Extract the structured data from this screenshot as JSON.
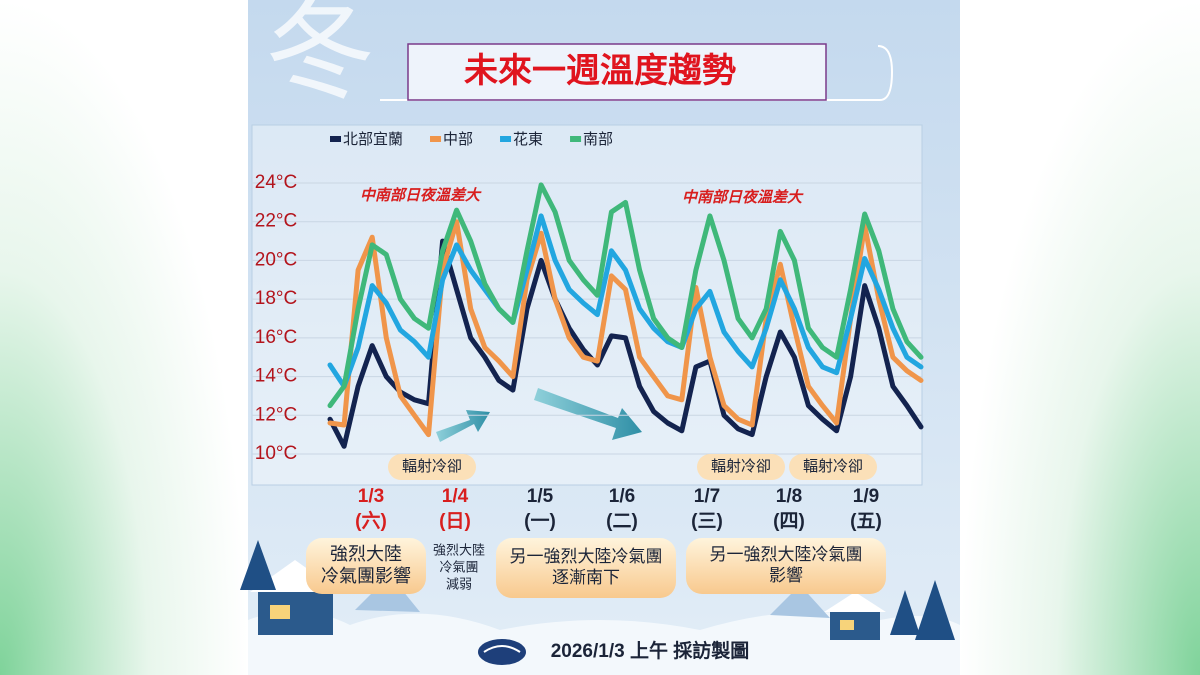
{
  "chart_data": {
    "type": "line",
    "title": "未來一週溫度趨勢",
    "watermark": "冬",
    "x": [
      0,
      4,
      8,
      12,
      16,
      20,
      24,
      28,
      32,
      36,
      40,
      44,
      48,
      52,
      56,
      60,
      64,
      68,
      72,
      76,
      80,
      84,
      88,
      92,
      96,
      100,
      104,
      108,
      112,
      116,
      120,
      124,
      128,
      132,
      136,
      140,
      144,
      148,
      152,
      156,
      160,
      164,
      168
    ],
    "xlim": [
      0,
      168
    ],
    "ylim": [
      10,
      24
    ],
    "yticks": [
      {
        "value": 10,
        "label": "10°C"
      },
      {
        "value": 12,
        "label": "12°C"
      },
      {
        "value": 14,
        "label": "14°C"
      },
      {
        "value": 16,
        "label": "16°C"
      },
      {
        "value": 18,
        "label": "18°C"
      },
      {
        "value": 20,
        "label": "20°C"
      },
      {
        "value": 22,
        "label": "22°C"
      },
      {
        "value": 24,
        "label": "24°C"
      }
    ],
    "grid": true,
    "legend": "top-left",
    "series": [
      {
        "name": "北部宜蘭",
        "color": "#13234f",
        "values": [
          11.8,
          10.4,
          13.5,
          15.6,
          14.0,
          13.2,
          12.8,
          12.6,
          21.0,
          18.5,
          16.0,
          15.0,
          13.8,
          13.3,
          17.5,
          20.0,
          18.0,
          16.5,
          15.4,
          14.6,
          16.1,
          16.0,
          13.5,
          12.2,
          11.6,
          11.2,
          14.5,
          14.8,
          12.0,
          11.3,
          11.0,
          14.0,
          16.3,
          15.0,
          12.5,
          11.8,
          11.2,
          14.0,
          18.7,
          16.5,
          13.5,
          12.5,
          11.4
        ]
      },
      {
        "name": "中部",
        "color": "#f0954a",
        "values": [
          11.6,
          11.5,
          19.5,
          21.2,
          16.0,
          13.0,
          12.0,
          11.0,
          19.5,
          22.0,
          17.5,
          15.5,
          14.8,
          14.0,
          19.0,
          21.4,
          18.0,
          16.0,
          15.0,
          14.8,
          19.2,
          18.5,
          15.0,
          14.0,
          13.0,
          12.8,
          18.6,
          15.0,
          12.5,
          11.8,
          11.5,
          17.0,
          19.8,
          16.5,
          13.5,
          12.5,
          11.6,
          17.0,
          21.8,
          18.0,
          15.0,
          14.3,
          13.8
        ]
      },
      {
        "name": "花東",
        "color": "#22a6e0",
        "values": [
          14.6,
          13.5,
          15.5,
          18.7,
          17.8,
          16.4,
          15.8,
          15.0,
          19.0,
          20.8,
          19.5,
          18.5,
          17.5,
          16.8,
          19.5,
          22.3,
          20.0,
          18.5,
          17.8,
          17.2,
          20.5,
          19.5,
          17.5,
          16.5,
          15.8,
          15.5,
          17.5,
          18.4,
          16.3,
          15.3,
          14.5,
          16.5,
          19.0,
          17.5,
          15.5,
          14.5,
          14.2,
          17.0,
          20.1,
          18.5,
          16.5,
          15.0,
          14.5
        ]
      },
      {
        "name": "南部",
        "color": "#3fb87a",
        "values": [
          12.5,
          13.5,
          17.5,
          20.8,
          20.3,
          18.0,
          17.0,
          16.5,
          20.5,
          22.6,
          21.0,
          18.8,
          17.5,
          16.8,
          20.5,
          23.9,
          22.5,
          20.0,
          19.0,
          18.2,
          22.5,
          23.0,
          19.5,
          17.0,
          16.0,
          15.5,
          19.5,
          22.3,
          20.0,
          17.0,
          16.0,
          17.5,
          21.5,
          20.0,
          16.5,
          15.5,
          15.0,
          18.5,
          22.4,
          20.5,
          17.5,
          15.8,
          15.0
        ]
      }
    ],
    "annotations": [
      "中南部日夜溫差大",
      "中南部日夜溫差大",
      "輻射冷卻",
      "輻射冷卻",
      "輻射冷卻"
    ],
    "days": [
      {
        "date": "1/3",
        "weekday": "(六)",
        "color": "#d81e1e"
      },
      {
        "date": "1/4",
        "weekday": "(日)",
        "color": "#d81e1e"
      },
      {
        "date": "1/5",
        "weekday": "(一)",
        "color": "#1b2438"
      },
      {
        "date": "1/6",
        "weekday": "(二)",
        "color": "#1b2438"
      },
      {
        "date": "1/7",
        "weekday": "(三)",
        "color": "#1b2438"
      },
      {
        "date": "1/8",
        "weekday": "(四)",
        "color": "#1b2438"
      },
      {
        "date": "1/9",
        "weekday": "(五)",
        "color": "#1b2438"
      }
    ],
    "notes": [
      [
        "強烈大陸",
        "冷氣團影響"
      ],
      [
        "強烈大陸",
        "冷氣團",
        "減弱"
      ],
      [
        "另一強烈大陸冷氣團",
        "逐漸南下"
      ],
      [
        "另一強烈大陸冷氣團",
        "影響"
      ]
    ],
    "footer": "2026/1/3 上午 採訪製圖"
  }
}
